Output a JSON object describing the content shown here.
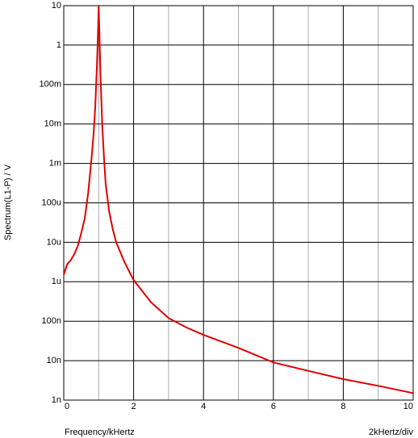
{
  "chart_data": {
    "type": "line",
    "x_label": "Frequency/kHertz",
    "x_unit_label": "2kHertz/div",
    "y_label": "Spectrum(L1-P) / V",
    "log_y": true,
    "grid": true,
    "xlim": [
      0,
      10
    ],
    "xticks": [
      0,
      2,
      4,
      6,
      8,
      10
    ],
    "ylim": [
      1e-09,
      10
    ],
    "yticks": [
      {
        "value": 1e-09,
        "label": "1n"
      },
      {
        "value": 1e-08,
        "label": "10n"
      },
      {
        "value": 1e-07,
        "label": "100n"
      },
      {
        "value": 1e-06,
        "label": "1u"
      },
      {
        "value": 1e-05,
        "label": "10u"
      },
      {
        "value": 0.0001,
        "label": "100u"
      },
      {
        "value": 0.001,
        "label": "1m"
      },
      {
        "value": 0.01,
        "label": "10m"
      },
      {
        "value": 0.1,
        "label": "100m"
      },
      1,
      10
    ],
    "series": [
      {
        "color": "#e00000",
        "x": [
          0,
          0.1,
          0.2,
          0.3,
          0.4,
          0.5,
          0.6,
          0.7,
          0.8,
          0.85,
          0.9,
          0.95,
          0.98,
          1.0,
          1.02,
          1.05,
          1.1,
          1.15,
          1.2,
          1.3,
          1.4,
          1.5,
          1.75,
          2,
          2.5,
          3,
          3.5,
          4,
          5,
          6,
          7,
          8,
          9,
          10
        ],
        "values": [
          1.5e-06,
          2.8e-06,
          3.5e-06,
          5e-06,
          8e-06,
          1.7e-05,
          4e-05,
          0.00018,
          0.0015,
          0.005,
          0.025,
          0.3,
          2,
          10,
          2,
          0.2,
          0.01,
          0.0015,
          0.0003,
          6e-05,
          2.2e-05,
          1e-05,
          3e-06,
          1.1e-06,
          3e-07,
          1.2e-07,
          7e-08,
          4.5e-08,
          2.1e-08,
          9e-09,
          5.5e-09,
          3.4e-09,
          2.3e-09,
          1.5e-09
        ]
      }
    ]
  }
}
